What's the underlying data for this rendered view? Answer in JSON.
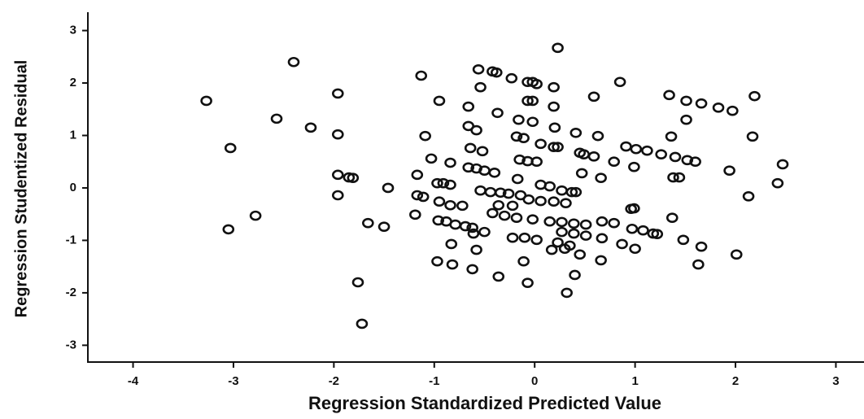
{
  "chart_data": {
    "type": "scatter",
    "x_label": "Regression Standardized Predicted Value",
    "y_label": "Regression Studentized Residual",
    "color": "#111111",
    "xlim": [
      -4.45,
      3.28
    ],
    "ylim": [
      -3.32,
      3.35
    ],
    "xticks": [
      -4,
      -3,
      -2,
      -1,
      0,
      1,
      2,
      3
    ],
    "yticks": [
      -3,
      -2,
      -1,
      0,
      1,
      2,
      3
    ],
    "x": [
      -3.27,
      -3.03,
      -3.05,
      -2.78,
      -2.57,
      -2.4,
      -2.23,
      -1.96,
      -1.96,
      -1.96,
      -1.96,
      -1.85,
      -1.81,
      -1.76,
      -1.72,
      -1.66,
      -1.5,
      -1.46,
      -1.13,
      -1.09,
      -1.17,
      -1.17,
      -1.19,
      -1.11,
      -1.03,
      -0.95,
      -0.84,
      -0.97,
      -0.91,
      -0.84,
      -0.95,
      -0.84,
      -0.72,
      -0.96,
      -0.88,
      -0.79,
      -0.69,
      -0.62,
      -0.83,
      -0.61,
      -0.5,
      -0.97,
      -0.82,
      -0.62,
      -0.58,
      -0.66,
      -0.66,
      -0.58,
      -0.64,
      -0.52,
      -0.66,
      -0.58,
      -0.5,
      -0.4,
      -0.56,
      -0.42,
      -0.38,
      -0.54,
      -0.37,
      -0.23,
      -0.07,
      -0.02,
      0.02,
      0.19,
      0.23,
      -0.07,
      -0.02,
      0.19,
      -0.16,
      -0.02,
      0.2,
      0.41,
      0.63,
      0.59,
      0.85,
      -0.18,
      -0.11,
      0.06,
      0.19,
      0.23,
      0.45,
      0.49,
      0.59,
      0.79,
      0.99,
      -0.15,
      -0.07,
      0.02,
      0.47,
      0.66,
      -0.17,
      0.06,
      0.15,
      0.27,
      0.37,
      0.41,
      -0.54,
      -0.44,
      -0.34,
      -0.26,
      -0.14,
      -0.06,
      0.06,
      0.19,
      0.31,
      -0.42,
      -0.3,
      -0.18,
      -0.02,
      0.15,
      0.27,
      0.39,
      0.51,
      -0.36,
      -0.22,
      -0.1,
      0.02,
      0.23,
      0.35,
      -0.22,
      0.27,
      0.39,
      0.51,
      0.67,
      0.17,
      0.3,
      0.45,
      0.66,
      -0.36,
      -0.11,
      -0.07,
      0.32,
      0.4,
      0.67,
      0.79,
      0.96,
      0.99,
      0.97,
      1.08,
      1.18,
      1.22,
      0.87,
      1.0,
      1.37,
      1.48,
      1.66,
      1.63,
      2.01,
      2.13,
      2.42,
      2.47,
      1.94,
      2.17,
      2.19,
      1.97,
      1.83,
      1.66,
      1.51,
      1.34,
      1.51,
      1.36,
      0.91,
      1.01,
      1.12,
      1.26,
      1.4,
      1.52,
      1.6,
      1.38,
      1.44
    ],
    "values": [
      1.66,
      0.76,
      -0.79,
      -0.53,
      1.32,
      2.4,
      1.15,
      1.8,
      1.02,
      0.25,
      -0.14,
      0.2,
      0.19,
      -1.8,
      -2.59,
      -0.67,
      -0.74,
      0.0,
      2.14,
      0.99,
      0.25,
      -0.14,
      -0.51,
      -0.17,
      0.56,
      1.66,
      0.48,
      0.09,
      0.09,
      0.06,
      -0.26,
      -0.33,
      -0.34,
      -0.62,
      -0.64,
      -0.7,
      -0.73,
      -0.76,
      -1.07,
      -0.87,
      -0.84,
      -1.4,
      -1.46,
      -1.55,
      -1.18,
      1.55,
      1.18,
      1.1,
      0.76,
      0.7,
      0.39,
      0.37,
      0.33,
      0.29,
      2.26,
      2.22,
      2.2,
      1.92,
      1.43,
      2.09,
      2.02,
      2.02,
      1.98,
      1.92,
      2.67,
      1.66,
      1.66,
      1.55,
      1.3,
      1.26,
      1.15,
      1.05,
      0.99,
      1.74,
      2.02,
      0.98,
      0.95,
      0.84,
      0.78,
      0.78,
      0.67,
      0.64,
      0.6,
      0.5,
      0.4,
      0.54,
      0.51,
      0.5,
      0.28,
      0.19,
      0.17,
      0.06,
      0.03,
      -0.05,
      -0.08,
      -0.08,
      -0.05,
      -0.08,
      -0.09,
      -0.11,
      -0.14,
      -0.22,
      -0.25,
      -0.26,
      -0.29,
      -0.48,
      -0.53,
      -0.57,
      -0.6,
      -0.64,
      -0.65,
      -0.68,
      -0.7,
      -0.33,
      -0.34,
      -0.95,
      -0.99,
      -1.04,
      -1.1,
      -0.95,
      -0.84,
      -0.87,
      -0.91,
      -0.96,
      -1.18,
      -1.16,
      -1.27,
      -1.38,
      -1.69,
      -1.4,
      -1.81,
      -2.0,
      -1.66,
      -0.64,
      -0.67,
      -0.4,
      -0.39,
      -0.78,
      -0.81,
      -0.87,
      -0.88,
      -1.07,
      -1.16,
      -0.57,
      -0.99,
      -1.12,
      -1.46,
      -1.27,
      -0.16,
      0.09,
      0.45,
      0.33,
      0.98,
      1.75,
      1.47,
      1.53,
      1.61,
      1.66,
      1.77,
      1.3,
      0.98,
      0.79,
      0.74,
      0.71,
      0.64,
      0.59,
      0.53,
      0.5,
      0.2,
      0.2
    ]
  }
}
